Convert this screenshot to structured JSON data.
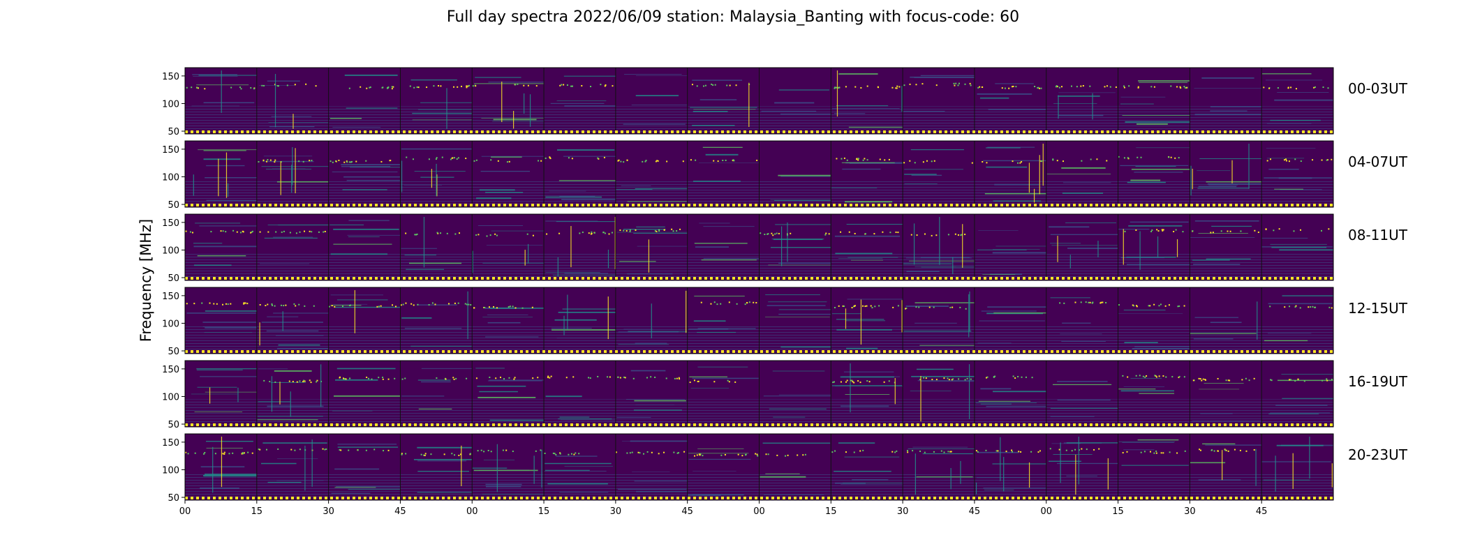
{
  "chart_data": {
    "type": "heatmap",
    "title": "Full day spectra 2022/06/09 station: Malaysia_Banting with focus-code: 60",
    "ylabel": "Frequency [MHz]",
    "xlabel": "",
    "rows": [
      {
        "label": "00-03UT"
      },
      {
        "label": "04-07UT"
      },
      {
        "label": "08-11UT"
      },
      {
        "label": "12-15UT"
      },
      {
        "label": "16-19UT"
      },
      {
        "label": "20-23UT"
      }
    ],
    "panels_per_row": 16,
    "panel_minutes": 15,
    "ylim": [
      45,
      165
    ],
    "y_ticks": [
      50,
      100,
      150
    ],
    "x_tick_labels": [
      "00",
      "15",
      "30",
      "45",
      "00",
      "15",
      "30",
      "45",
      "00",
      "15",
      "30",
      "45",
      "00",
      "15",
      "30",
      "45"
    ],
    "colormap": [
      "#440154",
      "#3b528b",
      "#21918c",
      "#5ec962",
      "#fde725"
    ],
    "grid": false
  }
}
